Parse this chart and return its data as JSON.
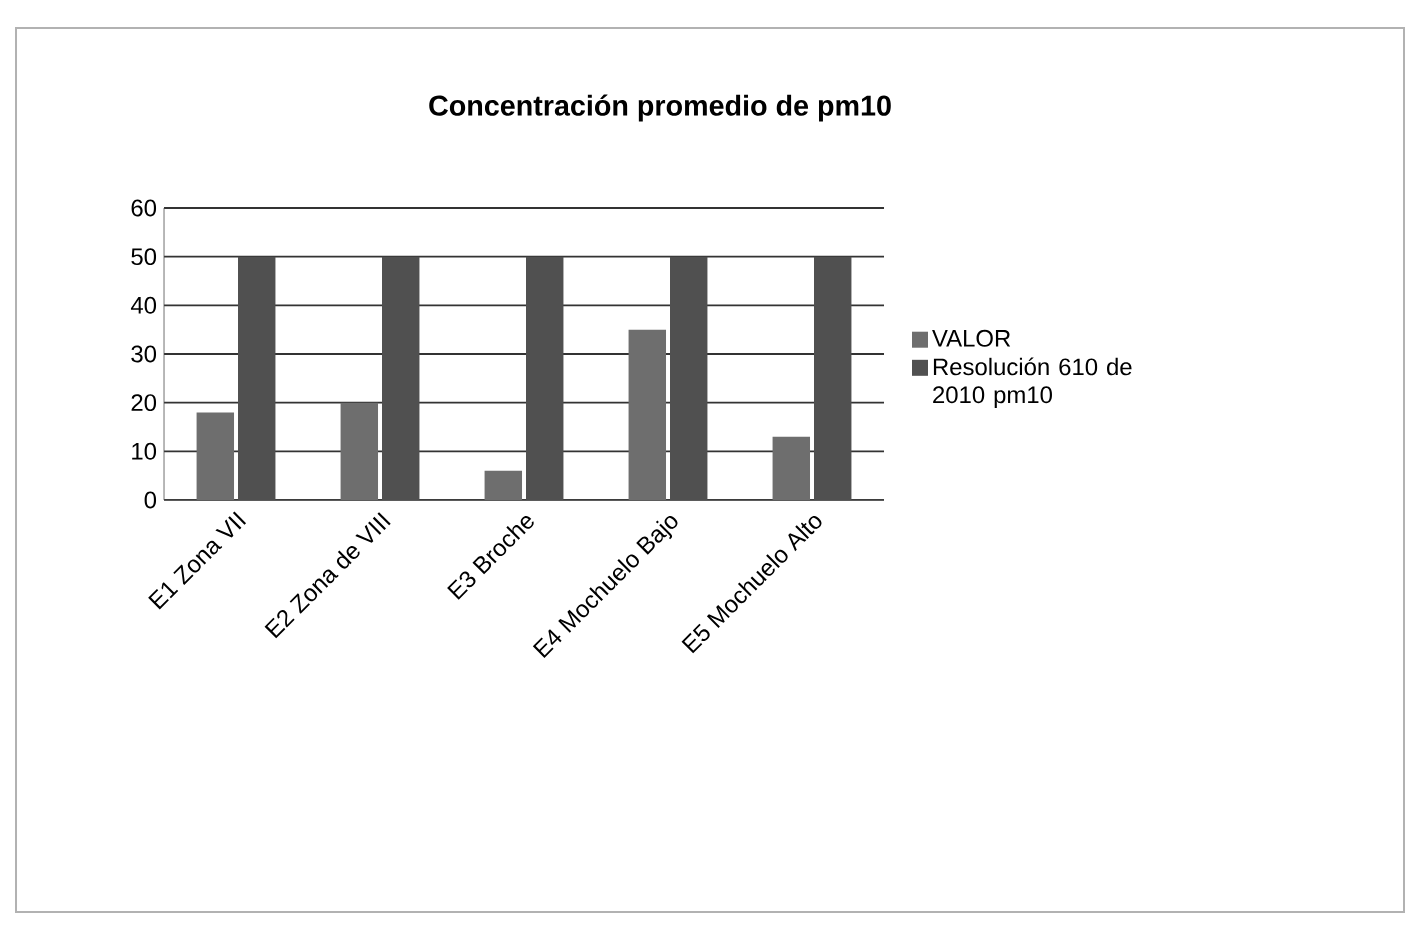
{
  "chart_data": {
    "type": "bar",
    "title": "Concentración promedio de pm10",
    "categories": [
      "E1 Zona VII",
      "E2 Zona de VIII",
      "E3 Broche",
      "E4 Mochuelo Bajo",
      "E5 Mochuelo Alto"
    ],
    "series": [
      {
        "name": "VALOR",
        "color": "#6e6e6e",
        "values": [
          18,
          20,
          6,
          35,
          13
        ]
      },
      {
        "name": "Resolución 610 de 2010 pm10",
        "color": "#505050",
        "values": [
          50,
          50,
          50,
          50,
          50
        ]
      }
    ],
    "ylim": [
      0,
      60
    ],
    "yticks": [
      0,
      10,
      20,
      30,
      40,
      50,
      60
    ],
    "grid": "y",
    "legend": "right"
  }
}
